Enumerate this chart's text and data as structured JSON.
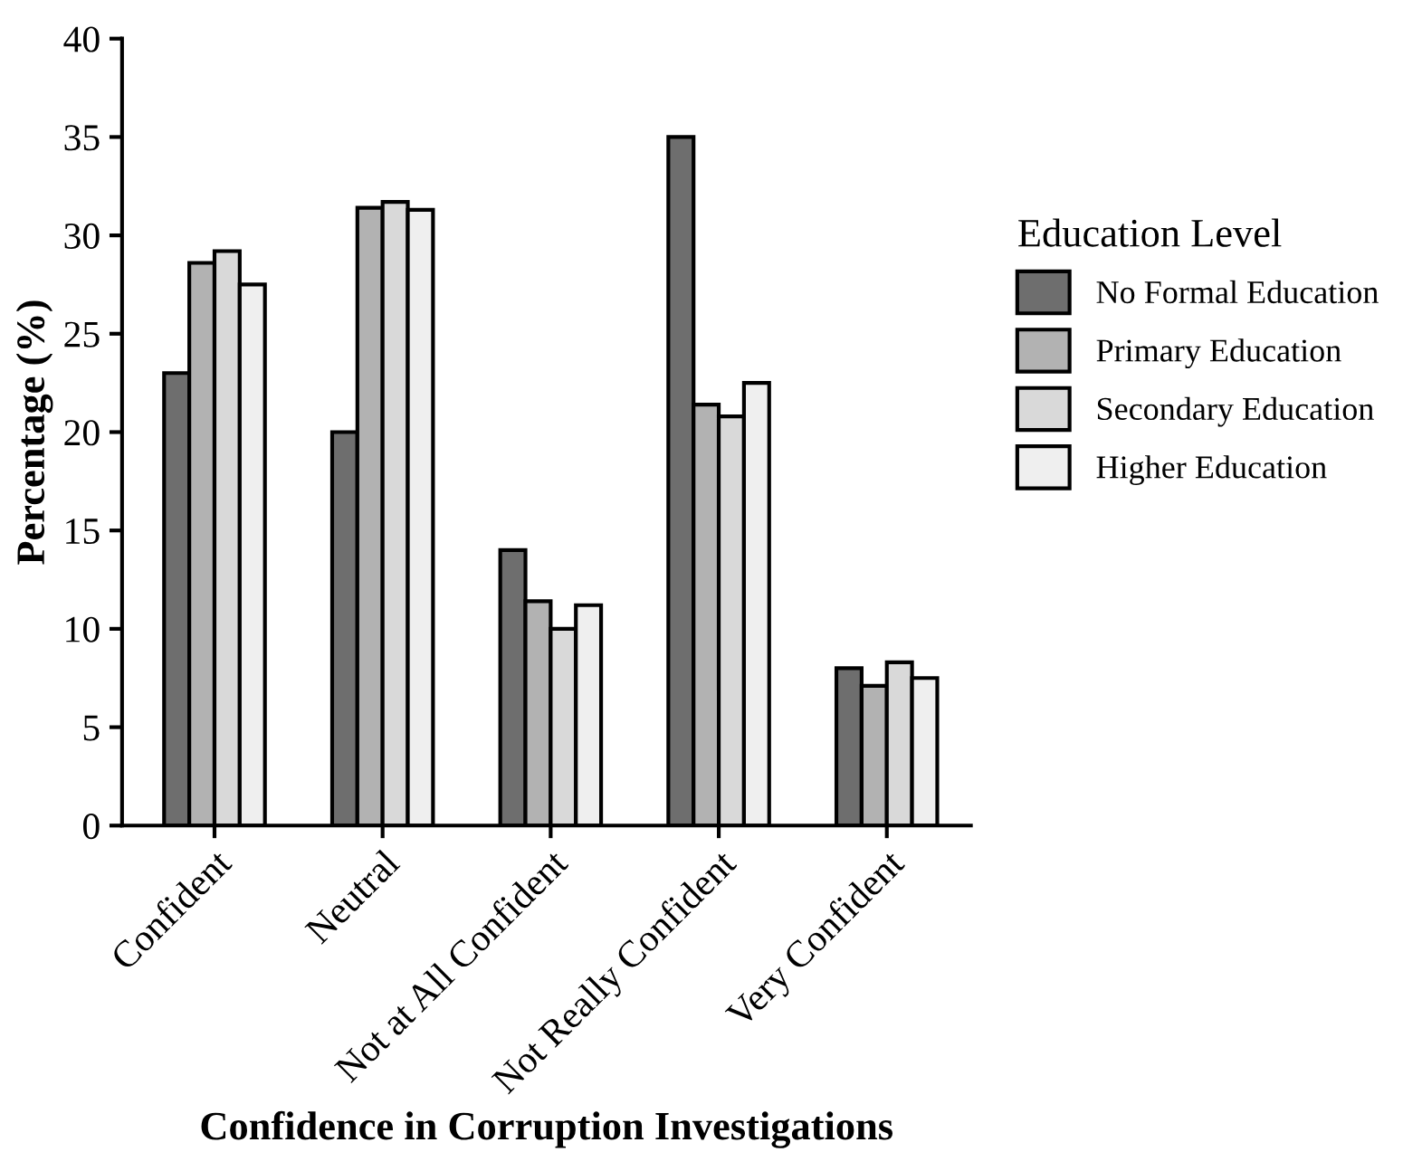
{
  "chart_data": {
    "type": "bar",
    "xlabel": "Confidence in Corruption Investigations",
    "ylabel": "Percentage (%)",
    "legend_title": "Education Level",
    "categories": [
      "Confident",
      "Neutral",
      "Not at All Confident",
      "Not Really Confident",
      "Very Confident"
    ],
    "series": [
      {
        "name": "No Formal Education",
        "color": "#6e6e6e",
        "values": [
          23.0,
          20.0,
          14.0,
          35.0,
          8.0
        ]
      },
      {
        "name": "Primary Education",
        "color": "#b2b2b2",
        "values": [
          28.6,
          31.4,
          11.4,
          21.4,
          7.1
        ]
      },
      {
        "name": "Secondary Education",
        "color": "#d9d9d9",
        "values": [
          29.2,
          31.7,
          10.0,
          20.8,
          8.3
        ]
      },
      {
        "name": "Higher Education",
        "color": "#efefef",
        "values": [
          27.5,
          31.3,
          11.2,
          22.5,
          7.5
        ]
      }
    ],
    "ylim": [
      0,
      40
    ],
    "yticks": [
      0,
      5,
      10,
      15,
      20,
      25,
      30,
      35,
      40
    ],
    "grid": false,
    "legend": "right"
  }
}
